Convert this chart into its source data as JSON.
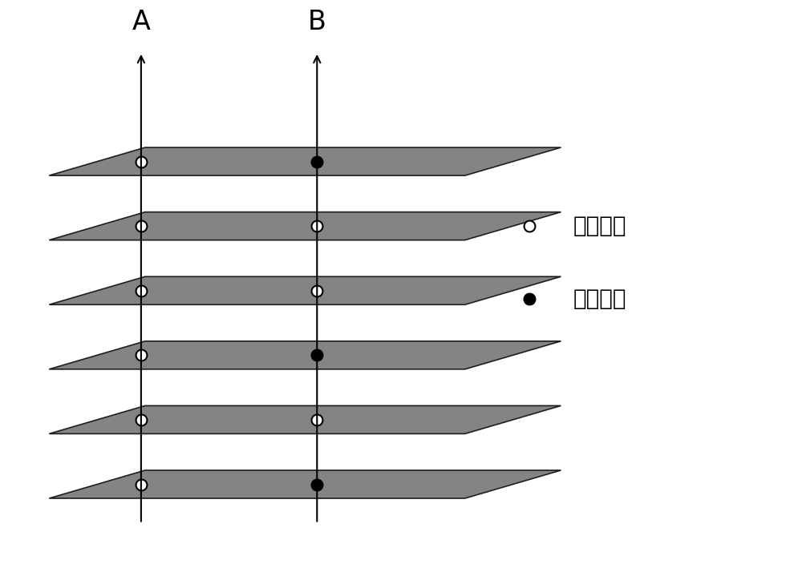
{
  "background_color": "#ffffff",
  "plane_color": "#7a7a7a",
  "plane_edge_color": "#111111",
  "num_planes": 6,
  "label_A": "A",
  "label_B": "B",
  "label_fontsize": 24,
  "legend_fontsize": 20,
  "legend_text1": "高相干値",
  "legend_text2": "低相干値",
  "A_dots": [
    "white",
    "white",
    "white",
    "white",
    "white",
    "white"
  ],
  "B_dots": [
    "black",
    "white",
    "white",
    "black",
    "white",
    "black"
  ]
}
